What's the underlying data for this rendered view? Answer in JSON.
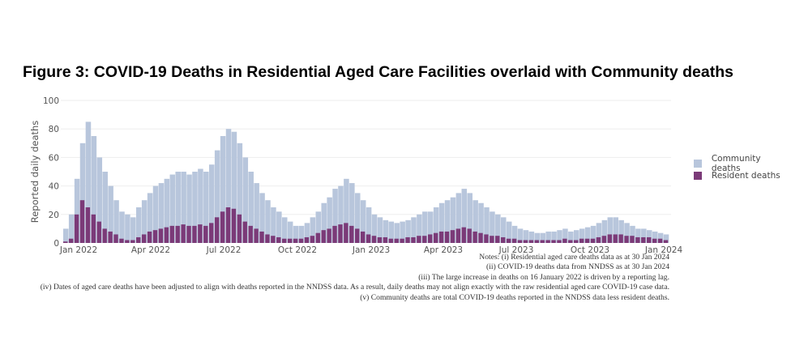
{
  "title": "Figure 3: COVID-19 Deaths in Residential Aged Care Facilities overlaid with Community deaths",
  "chart_data": {
    "type": "bar",
    "barmode": "overlay",
    "granularity_note_values_are_weekly_estimates": true,
    "x_start": "2022-01-02",
    "x_step_days": 7,
    "ylabel": "Reported daily deaths",
    "ylim": [
      0,
      100
    ],
    "yticks": [
      0,
      20,
      40,
      60,
      80,
      100
    ],
    "xticks": [
      "Jan 2022",
      "Apr 2022",
      "Jul 2022",
      "Oct 2022",
      "Jan 2023",
      "Apr 2023",
      "Jul 2023",
      "Oct 2023",
      "Jan 2024"
    ],
    "xtick_dates": [
      "2022-01-01",
      "2022-04-01",
      "2022-07-01",
      "2022-10-01",
      "2023-01-01",
      "2023-04-01",
      "2023-07-01",
      "2023-10-01",
      "2024-01-01"
    ],
    "grid": true,
    "legend_position": "right",
    "series": [
      {
        "name": "Community deaths",
        "color": "#b8c6dc",
        "values": [
          10,
          20,
          45,
          70,
          85,
          75,
          60,
          50,
          40,
          30,
          22,
          20,
          18,
          25,
          30,
          35,
          40,
          42,
          45,
          48,
          50,
          50,
          48,
          50,
          52,
          50,
          55,
          65,
          75,
          80,
          78,
          70,
          60,
          50,
          42,
          35,
          30,
          25,
          22,
          18,
          15,
          12,
          12,
          14,
          18,
          22,
          28,
          32,
          38,
          40,
          45,
          42,
          35,
          30,
          25,
          20,
          18,
          16,
          15,
          14,
          15,
          16,
          18,
          20,
          22,
          22,
          25,
          28,
          30,
          32,
          35,
          38,
          35,
          30,
          28,
          25,
          22,
          20,
          18,
          15,
          12,
          10,
          9,
          8,
          7,
          7,
          8,
          8,
          9,
          10,
          8,
          9,
          10,
          11,
          12,
          14,
          16,
          18,
          18,
          16,
          14,
          12,
          10,
          10,
          9,
          8,
          7,
          6
        ]
      },
      {
        "name": "Resident deaths",
        "color": "#7b3a78",
        "values": [
          1,
          3,
          20,
          30,
          25,
          20,
          15,
          10,
          8,
          6,
          3,
          2,
          2,
          4,
          6,
          8,
          9,
          10,
          11,
          12,
          12,
          13,
          12,
          12,
          13,
          12,
          14,
          18,
          22,
          25,
          24,
          20,
          15,
          12,
          10,
          8,
          6,
          5,
          4,
          3,
          3,
          3,
          3,
          4,
          5,
          7,
          9,
          10,
          12,
          13,
          14,
          12,
          10,
          8,
          6,
          5,
          4,
          4,
          3,
          3,
          3,
          4,
          4,
          5,
          5,
          6,
          7,
          8,
          8,
          9,
          10,
          11,
          10,
          8,
          7,
          6,
          5,
          5,
          4,
          3,
          3,
          2,
          2,
          2,
          2,
          2,
          2,
          2,
          2,
          3,
          2,
          2,
          3,
          3,
          3,
          4,
          5,
          6,
          6,
          6,
          5,
          5,
          4,
          4,
          4,
          3,
          3,
          2
        ]
      }
    ]
  },
  "notes": [
    "Notes: (i) Residential aged care deaths data as at 30 Jan 2024",
    "(ii) COVID-19 deaths data from NNDSS as at 30 Jan 2024",
    "(iii) The large increase in deaths on 16 January 2022 is driven by a reporting lag.",
    "(iv) Dates of aged care deaths have been adjusted to align with deaths reported in the NNDSS data. As a result, daily deaths may not align exactly with the raw residential aged care COVID-19 case data.",
    "(v) Community deaths are total COVID-19 deaths reported in the NNDSS data less resident deaths."
  ]
}
